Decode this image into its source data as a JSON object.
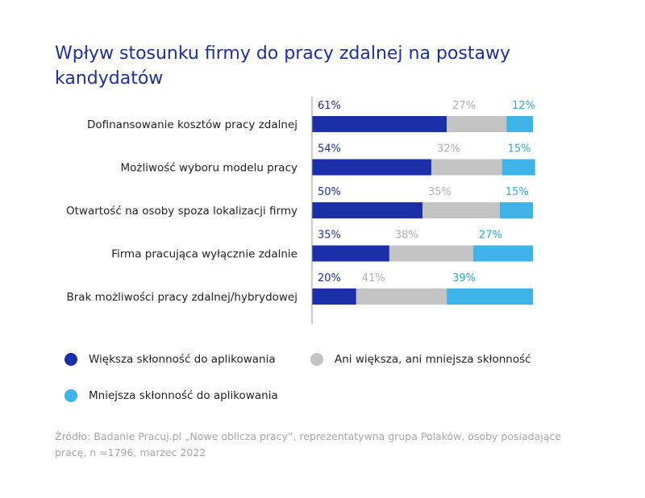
{
  "chart_data": {
    "type": "bar",
    "orientation": "horizontal",
    "stacked": true,
    "title": "Wpływ stosunku firmy do pracy zdalnej na postawy kandydatów",
    "categories": [
      "Dofinansowanie kosztów pracy zdalnej",
      "Możliwość wyboru modelu pracy",
      "Otwartość na osoby spoza lokalizacji firmy",
      "Firma pracująca wyłącznie zdalnie",
      "Brak możliwości pracy zdalnej/hybrydowej"
    ],
    "series": [
      {
        "name": "Większa skłonność do aplikowania",
        "color": "#1a2fa8",
        "label_color": "#1a2fa8",
        "values": [
          61,
          54,
          50,
          35,
          20
        ]
      },
      {
        "name": "Ani większa, ani mniejsza skłonność",
        "color": "#c4c4c4",
        "label_color": "#b0b0b0",
        "values": [
          27,
          32,
          35,
          38,
          41
        ]
      },
      {
        "name": "Mniejsza skłonność do aplikowania",
        "color": "#3db3e8",
        "label_color": "#2aa8e0",
        "values": [
          12,
          15,
          15,
          27,
          39
        ]
      }
    ],
    "value_suffix": "%",
    "xlim": [
      0,
      100
    ]
  },
  "source": "Źródło: Badanie Pracuj.pl „Nowe oblicza pracy”, reprezentatywna grupa Polaków, osoby posiadające pracę, n =1796, marzec 2022"
}
